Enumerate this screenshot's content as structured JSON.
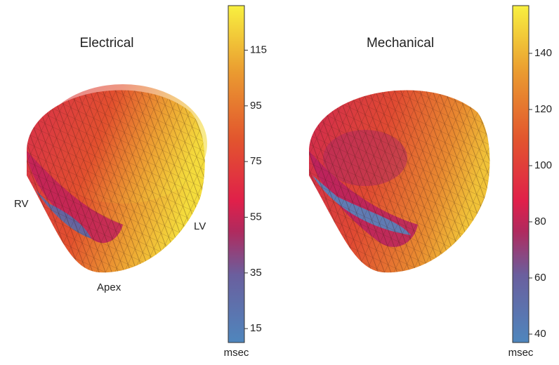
{
  "chart_data": [
    {
      "type": "colorbar",
      "title": "Electrical",
      "unit": "msec",
      "labels": [
        "RV",
        "LV",
        "Apex"
      ],
      "ylim": [
        10,
        131
      ],
      "yticks": [
        15,
        35,
        55,
        75,
        95,
        115
      ]
    },
    {
      "type": "colorbar",
      "title": "Mechanical",
      "unit": "msec",
      "ylim": [
        37,
        157
      ],
      "yticks": [
        40,
        60,
        80,
        100,
        120,
        140
      ]
    }
  ]
}
